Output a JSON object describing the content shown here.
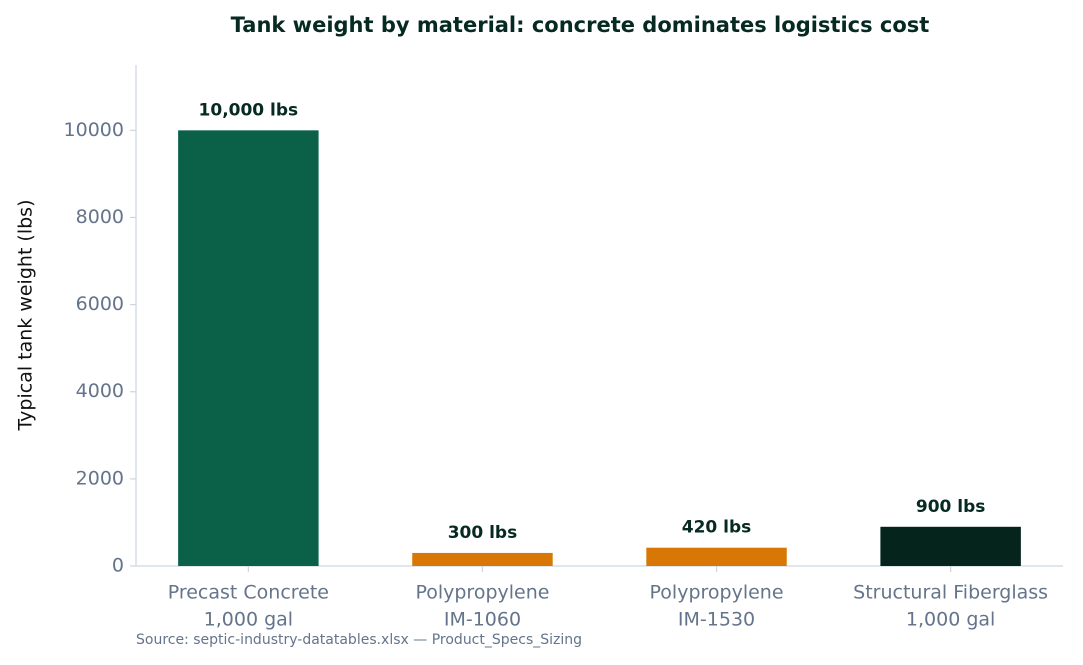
{
  "chart_data": {
    "type": "bar",
    "title": "Tank weight by material: concrete dominates logistics cost",
    "y_label": "Typical tank weight (lbs)",
    "source": "Source: septic-industry-datatables.xlsx — Product_Specs_Sizing",
    "categories": [
      [
        "Precast Concrete",
        "1,000 gal"
      ],
      [
        "Polypropylene",
        "IM-1060"
      ],
      [
        "Polypropylene",
        "IM-1530"
      ],
      [
        "Structural Fiberglass",
        "1,000 gal"
      ]
    ],
    "values": [
      10000,
      300,
      420,
      900
    ],
    "value_labels": [
      "10,000 lbs",
      "300 lbs",
      "420 lbs",
      "900 lbs"
    ],
    "colors": [
      "#0a6148",
      "#d97706",
      "#d97706",
      "#04241c"
    ],
    "ylim": [
      0,
      11500
    ],
    "yticks": [
      0,
      2000,
      4000,
      6000,
      8000,
      10000
    ],
    "grid": false
  }
}
